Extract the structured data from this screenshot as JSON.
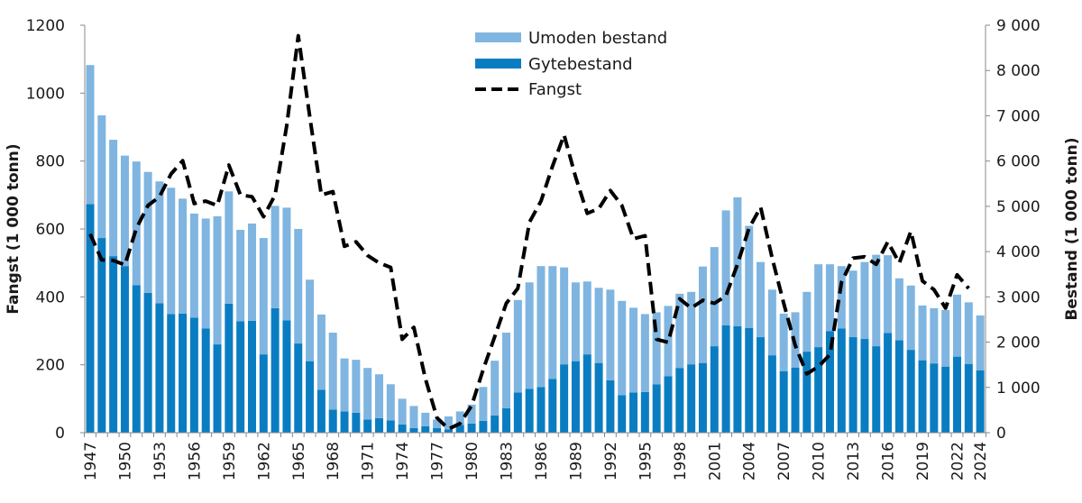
{
  "chart_data": {
    "type": "bar",
    "subtype": "stacked bar with dashed line on secondary axis",
    "years": [
      1947,
      1948,
      1949,
      1950,
      1951,
      1952,
      1953,
      1954,
      1955,
      1956,
      1957,
      1958,
      1959,
      1960,
      1961,
      1962,
      1963,
      1964,
      1965,
      1966,
      1967,
      1968,
      1969,
      1970,
      1971,
      1972,
      1973,
      1974,
      1975,
      1976,
      1977,
      1978,
      1979,
      1980,
      1981,
      1982,
      1983,
      1984,
      1985,
      1986,
      1987,
      1988,
      1989,
      1990,
      1991,
      1992,
      1993,
      1994,
      1995,
      1996,
      1997,
      1998,
      1999,
      2000,
      2001,
      2002,
      2003,
      2004,
      2005,
      2006,
      2007,
      2008,
      2009,
      2010,
      2011,
      2012,
      2013,
      2014,
      2015,
      2016,
      2017,
      2018,
      2019,
      2020,
      2021,
      2022,
      2023,
      2024
    ],
    "series": [
      {
        "name": "Gytebestand",
        "axis": "right",
        "type": "bar",
        "color": "#0a7dc2",
        "values": [
          5050,
          4300,
          3900,
          3680,
          3260,
          3090,
          2860,
          2620,
          2630,
          2540,
          2300,
          1950,
          2850,
          2460,
          2470,
          1730,
          2750,
          2480,
          1970,
          1580,
          950,
          510,
          470,
          440,
          290,
          320,
          270,
          180,
          100,
          140,
          100,
          70,
          170,
          200,
          260,
          380,
          540,
          890,
          970,
          1010,
          1190,
          1510,
          1580,
          1730,
          1540,
          1160,
          830,
          890,
          900,
          1070,
          1250,
          1430,
          1510,
          1540,
          1910,
          2370,
          2350,
          2310,
          2110,
          1710,
          1360,
          1440,
          1790,
          1890,
          2240,
          2300,
          2110,
          2070,
          1910,
          2200,
          2040,
          1830,
          1600,
          1530,
          1460,
          1680,
          1520,
          1380
        ]
      },
      {
        "name": "Umoden bestand",
        "axis": "right",
        "type": "bar",
        "color": "#7fb5e0",
        "values": [
          3070,
          2710,
          2570,
          2440,
          2730,
          2670,
          2690,
          2790,
          2540,
          2300,
          2430,
          2830,
          2480,
          2020,
          2150,
          2570,
          2260,
          2490,
          2530,
          1800,
          1660,
          1700,
          1170,
          1170,
          1140,
          970,
          800,
          570,
          490,
          300,
          190,
          290,
          300,
          420,
          750,
          1210,
          1670,
          2040,
          2350,
          2670,
          2490,
          2140,
          1740,
          1610,
          1660,
          2000,
          2080,
          1870,
          1720,
          1590,
          1550,
          1640,
          1600,
          2130,
          2190,
          2540,
          2850,
          2260,
          1660,
          1450,
          1270,
          1220,
          1320,
          1830,
          1480,
          1380,
          1470,
          1700,
          2020,
          1720,
          1370,
          1420,
          1210,
          1220,
          1250,
          1370,
          1360,
          1210
        ]
      },
      {
        "name": "Fangst",
        "axis": "left",
        "type": "line",
        "style": "dashed",
        "color": "#000000",
        "values": [
          585,
          509,
          507,
          494,
          602,
          669,
          695,
          762,
          801,
          675,
          682,
          669,
          788,
          700,
          695,
          636,
          700,
          903,
          1169,
          930,
          700,
          710,
          549,
          562,
          522,
          500,
          487,
          275,
          310,
          159,
          44,
          11,
          27,
          80,
          186,
          283,
          381,
          425,
          620,
          682,
          785,
          877,
          753,
          646,
          660,
          713,
          669,
          571,
          580,
          275,
          266,
          394,
          367,
          390,
          381,
          403,
          496,
          602,
          664,
          514,
          381,
          257,
          173,
          195,
          230,
          443,
          514,
          518,
          496,
          562,
          500,
          593,
          447,
          421,
          367,
          465,
          425,
          null
        ]
      }
    ],
    "x_tick_labels": [
      "1947",
      "1950",
      "1953",
      "1956",
      "1959",
      "1962",
      "1965",
      "1968",
      "1971",
      "1974",
      "1977",
      "1980",
      "1983",
      "1986",
      "1989",
      "1992",
      "1995",
      "1998",
      "2001",
      "2004",
      "2007",
      "2010",
      "2013",
      "2016",
      "2019",
      "2022",
      "2024"
    ],
    "left_axis": {
      "label": "Fangst (1 000 tonn)",
      "range": [
        0,
        1200
      ],
      "ticks": [
        "0",
        "200",
        "400",
        "600",
        "800",
        "1000",
        "1200"
      ]
    },
    "right_axis": {
      "label": "Bestand (1 000 tonn)",
      "range": [
        0,
        9000
      ],
      "ticks": [
        "0",
        "1 000",
        "2 000",
        "3 000",
        "4 000",
        "5 000",
        "6 000",
        "7 000",
        "8 000",
        "9 000"
      ]
    },
    "legend": {
      "placement": "top-center",
      "entries": [
        "Umoden bestand",
        "Gytebestand",
        "Fangst"
      ]
    },
    "grid": false
  }
}
